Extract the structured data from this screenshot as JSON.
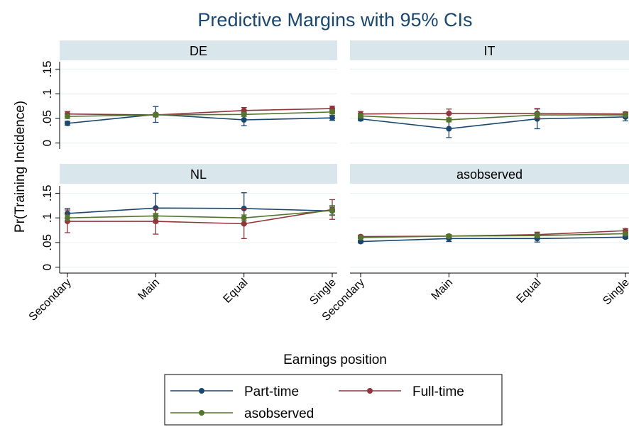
{
  "figure": {
    "title": "Predictive Margins with 95% CIs",
    "xlabel": "Earnings position",
    "ylabel": "Pr(Training Incidence)"
  },
  "chart_data": [
    {
      "type": "line",
      "title": "DE",
      "categories": [
        "Secondary",
        "Main",
        "Equal",
        "Single"
      ],
      "ylim": [
        -0.012,
        0.165
      ],
      "yticks": [
        0,
        {
          "value": 0.05,
          "label": ".05"
        },
        {
          "value": 0.1,
          "label": ".1"
        },
        {
          "value": 0.15,
          "label": ".15"
        }
      ],
      "grid": true,
      "series": [
        {
          "name": "Part-time",
          "color": "#1a476f",
          "values": [
            0.04,
            0.058,
            0.047,
            0.051
          ],
          "errors": [
            0.004,
            0.016,
            0.012,
            0.005
          ]
        },
        {
          "name": "Full-time",
          "color": "#90353b",
          "values": [
            0.059,
            0.057,
            0.066,
            0.07
          ],
          "errors": [
            0.005,
            0.004,
            0.006,
            0.005
          ]
        },
        {
          "name": "asobserved",
          "color": "#55752f",
          "values": [
            0.054,
            0.057,
            0.058,
            0.063
          ],
          "errors": [
            0.004,
            0.003,
            0.004,
            0.004
          ]
        }
      ]
    },
    {
      "type": "line",
      "title": "IT",
      "categories": [
        "Secondary",
        "Main",
        "Equal",
        "Single"
      ],
      "ylim": [
        -0.012,
        0.165
      ],
      "yticks": [
        0,
        {
          "value": 0.05,
          "label": ".05"
        },
        {
          "value": 0.1,
          "label": ".1"
        },
        {
          "value": 0.15,
          "label": ".15"
        }
      ],
      "grid": true,
      "series": [
        {
          "name": "Part-time",
          "color": "#1a476f",
          "values": [
            0.049,
            0.029,
            0.049,
            0.053
          ],
          "errors": [
            0.004,
            0.018,
            0.02,
            0.008
          ]
        },
        {
          "name": "Full-time",
          "color": "#90353b",
          "values": [
            0.059,
            0.06,
            0.06,
            0.059
          ],
          "errors": [
            0.005,
            0.009,
            0.01,
            0.004
          ]
        },
        {
          "name": "asobserved",
          "color": "#55752f",
          "values": [
            0.055,
            0.047,
            0.057,
            0.057
          ],
          "errors": [
            0.004,
            0.004,
            0.005,
            0.003
          ]
        }
      ]
    },
    {
      "type": "line",
      "title": "NL",
      "categories": [
        "Secondary",
        "Main",
        "Equal",
        "Single"
      ],
      "ylim": [
        -0.012,
        0.165
      ],
      "yticks": [
        0,
        {
          "value": 0.05,
          "label": ".05"
        },
        {
          "value": 0.1,
          "label": ".1"
        },
        {
          "value": 0.15,
          "label": ".15"
        }
      ],
      "grid": true,
      "series": [
        {
          "name": "Part-time",
          "color": "#1a476f",
          "values": [
            0.109,
            0.12,
            0.119,
            0.114
          ],
          "errors": [
            0.01,
            0.03,
            0.032,
            0.008
          ]
        },
        {
          "name": "Full-time",
          "color": "#90353b",
          "values": [
            0.093,
            0.093,
            0.088,
            0.117
          ],
          "errors": [
            0.023,
            0.026,
            0.03,
            0.02
          ]
        },
        {
          "name": "asobserved",
          "color": "#55752f",
          "values": [
            0.1,
            0.104,
            0.1,
            0.115
          ],
          "errors": [
            0.006,
            0.005,
            0.006,
            0.01
          ]
        }
      ]
    },
    {
      "type": "line",
      "title": "asobserved",
      "categories": [
        "Secondary",
        "Main",
        "Equal",
        "Single"
      ],
      "ylim": [
        -0.012,
        0.165
      ],
      "yticks": [
        0,
        {
          "value": 0.05,
          "label": ".05"
        },
        {
          "value": 0.1,
          "label": ".1"
        },
        {
          "value": 0.15,
          "label": ".15"
        }
      ],
      "grid": true,
      "series": [
        {
          "name": "Part-time",
          "color": "#1a476f",
          "values": [
            0.052,
            0.058,
            0.058,
            0.061
          ],
          "errors": [
            0.003,
            0.006,
            0.007,
            0.003
          ]
        },
        {
          "name": "Full-time",
          "color": "#90353b",
          "values": [
            0.062,
            0.063,
            0.066,
            0.074
          ],
          "errors": [
            0.003,
            0.003,
            0.005,
            0.004
          ]
        },
        {
          "name": "asobserved",
          "color": "#55752f",
          "values": [
            0.06,
            0.063,
            0.064,
            0.068
          ],
          "errors": [
            0.002,
            0.003,
            0.003,
            0.003
          ]
        }
      ]
    }
  ]
}
